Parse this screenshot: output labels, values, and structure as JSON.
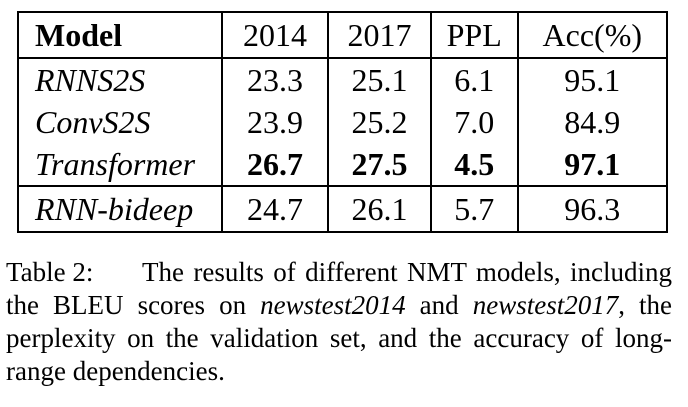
{
  "table": {
    "headers": [
      "Model",
      "2014",
      "2017",
      "PPL",
      "Acc(%)"
    ],
    "rows": [
      {
        "model": "RNNS2S",
        "v2014": "23.3",
        "v2017": "25.1",
        "ppl": "6.1",
        "acc": "95.1"
      },
      {
        "model": "ConvS2S",
        "v2014": "23.9",
        "v2017": "25.2",
        "ppl": "7.0",
        "acc": "84.9"
      },
      {
        "model": "Transformer",
        "v2014": "26.7",
        "v2017": "27.5",
        "ppl": "4.5",
        "acc": "97.1"
      },
      {
        "model": "RNN-bideep",
        "v2014": "24.7",
        "v2017": "26.1",
        "ppl": "5.7",
        "acc": "96.3"
      }
    ]
  },
  "caption": {
    "label": "Table 2:",
    "text_1": "The results of different NMT models, including the BLEU scores on ",
    "emph_1": "newstest2014",
    "text_2": " and ",
    "emph_2": "newstest2017",
    "text_3": ", the perplexity on the validation set, and the accuracy of long-range dependencies."
  }
}
